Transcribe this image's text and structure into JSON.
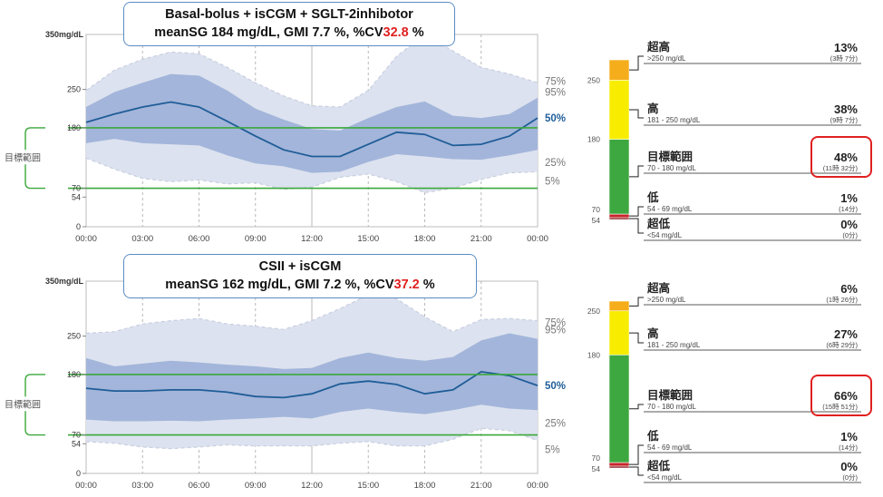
{
  "chart_data": [
    {
      "type": "area",
      "title_line1": "Basal-bolus + isCGM + SGLT-2inhibotor",
      "title_line2": {
        "prefix": "meanSG 184 mg/dL, GMI 7.7 %, %CV",
        "cv": "32.8",
        "suffix": "%"
      },
      "ymax_label": "350mg/dL",
      "ylim": [
        0,
        350
      ],
      "yticks": [
        0,
        54,
        70,
        180,
        250
      ],
      "target_range": [
        70,
        180
      ],
      "target_label": "目標範囲",
      "x_labels": [
        "00:00",
        "03:00",
        "06:00",
        "09:00",
        "12:00",
        "15:00",
        "18:00",
        "21:00",
        "00:00"
      ],
      "x_hours": [
        0,
        1.5,
        3,
        4.5,
        6,
        7.5,
        9,
        10.5,
        12,
        13.5,
        15,
        16.5,
        18,
        19.5,
        21,
        22.5,
        24
      ],
      "p5": [
        125,
        105,
        88,
        82,
        85,
        78,
        80,
        68,
        72,
        90,
        96,
        82,
        62,
        70,
        86,
        98,
        100
      ],
      "p25": [
        152,
        160,
        152,
        150,
        148,
        130,
        115,
        110,
        98,
        100,
        118,
        132,
        128,
        123,
        122,
        130,
        140
      ],
      "p50": [
        190,
        205,
        218,
        227,
        218,
        192,
        165,
        140,
        128,
        128,
        150,
        172,
        168,
        148,
        150,
        165,
        198
      ],
      "p75": [
        218,
        245,
        262,
        278,
        275,
        248,
        215,
        195,
        178,
        175,
        198,
        218,
        228,
        202,
        198,
        205,
        235
      ],
      "p95": [
        248,
        285,
        305,
        318,
        315,
        290,
        262,
        238,
        220,
        218,
        248,
        310,
        350,
        320,
        290,
        278,
        262
      ],
      "percentile_labels": [
        "95%",
        "75%",
        "50%",
        "25%",
        "5%"
      ],
      "tir": {
        "segments": [
          {
            "name": "超高",
            "range": ">250 mg/dL",
            "pct": "13%",
            "time": "(3時 7分)",
            "value": 13,
            "color": "#f6ad1b"
          },
          {
            "name": "高",
            "range": "181 - 250 mg/dL",
            "pct": "38%",
            "time": "(9時 7分)",
            "value": 38,
            "color": "#f8ec00"
          },
          {
            "name": "目標範囲",
            "range": "70 - 180 mg/dL",
            "pct": "48%",
            "time": "(11時 32分)",
            "value": 48,
            "color": "#3ea840"
          },
          {
            "name": "低",
            "range": "54 - 69 mg/dL",
            "pct": "1%",
            "time": "(14分)",
            "value": 1,
            "color": "#c7242a"
          },
          {
            "name": "超低",
            "range": "<54 mg/dL",
            "pct": "0%",
            "time": "(0分)",
            "value": 0,
            "color": "#8c1219"
          }
        ],
        "scale_labels": [
          "250",
          "180",
          "70",
          "54"
        ]
      }
    },
    {
      "type": "area",
      "title_line1": "CSII + isCGM",
      "title_line2": {
        "prefix": "meanSG 162 mg/dL, GMI 7.2 %, %CV",
        "cv": "37.2",
        "suffix": "%"
      },
      "ymax_label": "350mg/dL",
      "ylim": [
        0,
        350
      ],
      "yticks": [
        0,
        54,
        70,
        180,
        250
      ],
      "target_range": [
        70,
        180
      ],
      "target_label": "目標範囲",
      "x_labels": [
        "00:00",
        "03:00",
        "06:00",
        "09:00",
        "12:00",
        "15:00",
        "18:00",
        "21:00",
        "00:00"
      ],
      "x_hours": [
        0,
        1.5,
        3,
        4.5,
        6,
        7.5,
        9,
        10.5,
        12,
        13.5,
        15,
        16.5,
        18,
        19.5,
        21,
        22.5,
        24
      ],
      "p5": [
        58,
        55,
        48,
        45,
        48,
        52,
        50,
        50,
        50,
        55,
        58,
        50,
        50,
        62,
        82,
        78,
        60
      ],
      "p25": [
        98,
        95,
        95,
        96,
        95,
        98,
        100,
        103,
        100,
        112,
        118,
        112,
        108,
        115,
        125,
        118,
        115
      ],
      "p50": [
        155,
        150,
        150,
        152,
        152,
        148,
        140,
        138,
        145,
        163,
        168,
        162,
        145,
        152,
        185,
        178,
        160
      ],
      "p75": [
        210,
        195,
        200,
        205,
        202,
        198,
        195,
        190,
        192,
        210,
        220,
        210,
        205,
        212,
        242,
        255,
        245
      ],
      "p95": [
        255,
        258,
        272,
        278,
        282,
        272,
        268,
        262,
        278,
        300,
        325,
        318,
        285,
        258,
        280,
        282,
        278
      ],
      "percentile_labels": [
        "95%",
        "75%",
        "50%",
        "25%",
        "5%"
      ],
      "tir": {
        "segments": [
          {
            "name": "超高",
            "range": ">250 mg/dL",
            "pct": "6%",
            "time": "(1時 26分)",
            "value": 6,
            "color": "#f6ad1b"
          },
          {
            "name": "高",
            "range": "181 - 250 mg/dL",
            "pct": "27%",
            "time": "(6時 29分)",
            "value": 27,
            "color": "#f8ec00"
          },
          {
            "name": "目標範囲",
            "range": "70 - 180 mg/dL",
            "pct": "66%",
            "time": "(15時 51分)",
            "value": 66,
            "color": "#3ea840"
          },
          {
            "name": "低",
            "range": "54 - 69 mg/dL",
            "pct": "1%",
            "time": "(14分)",
            "value": 1,
            "color": "#c7242a"
          },
          {
            "name": "超低",
            "range": "<54 mg/dL",
            "pct": "0%",
            "time": "(0分)",
            "value": 0,
            "color": "#8c1219"
          }
        ],
        "scale_labels": [
          "250",
          "180",
          "70",
          "54"
        ]
      }
    }
  ],
  "colors": {
    "band_outer": "#dce2ef",
    "band_outer_edge": "#c9cfe0",
    "band_inner": "#9fb2d8",
    "median": "#1f5d98",
    "target_line": "#3aa83a",
    "highlight": "#e02020",
    "axis": "#bdbdbd"
  }
}
